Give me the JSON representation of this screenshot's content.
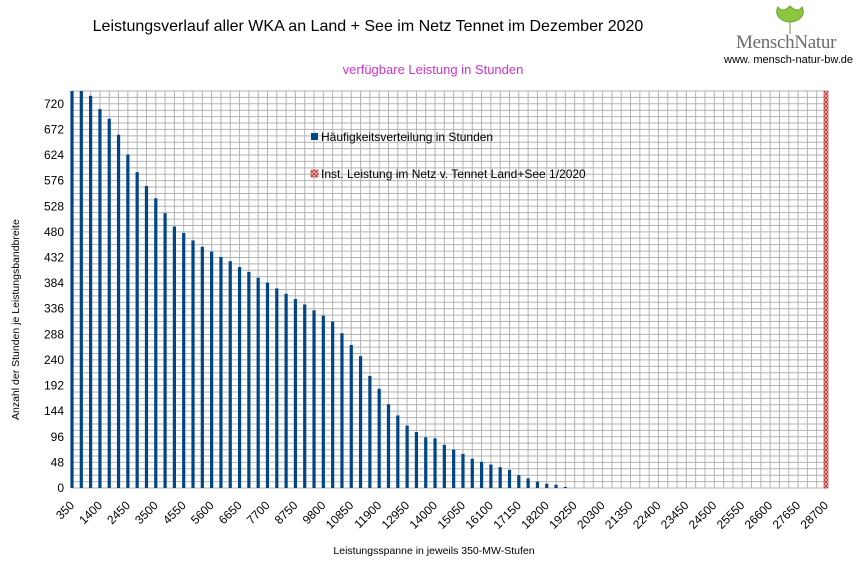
{
  "header": {
    "title": "Leistungsverlauf aller WKA an Land + See im Netz Tennet im Dezember 2020",
    "subtitle": "verfügbare Leistung in Stunden",
    "subtitle_color": "#cc33cc"
  },
  "logo": {
    "name": "MenschNatur",
    "url": "www. mensch-natur-bw.de"
  },
  "chart_data": {
    "type": "bar",
    "title": "Leistungsverlauf aller WKA an Land + See im Netz Tennet im Dezember 2020",
    "subtitle": "verfügbare Leistung in Stunden",
    "xlabel": "Leistungsspanne in jeweils 350-MW-Stufen",
    "ylabel": "Anzahl der Stunden je Leistungsbandbreite",
    "ylim": [
      0,
      744
    ],
    "yticks": [
      0,
      48,
      96,
      144,
      192,
      240,
      288,
      336,
      384,
      432,
      480,
      528,
      576,
      624,
      672,
      720
    ],
    "xticks": [
      350,
      1400,
      2450,
      3500,
      4550,
      5600,
      6650,
      7700,
      8750,
      9800,
      10850,
      11900,
      12950,
      14000,
      15050,
      16100,
      17150,
      18200,
      19250,
      20300,
      21350,
      22400,
      23450,
      24500,
      25550,
      26600,
      27650,
      28700
    ],
    "x_step": 350,
    "grid": true,
    "legend_position": "inside-top-center",
    "series": [
      {
        "name": "Häufigkeitsverteilung in Stunden",
        "color": "#004586",
        "x": [
          350,
          700,
          1050,
          1400,
          1750,
          2100,
          2450,
          2800,
          3150,
          3500,
          3850,
          4200,
          4550,
          4900,
          5250,
          5600,
          5950,
          6300,
          6650,
          7000,
          7350,
          7700,
          8050,
          8400,
          8750,
          9100,
          9450,
          9800,
          10150,
          10500,
          10850,
          11200,
          11550,
          11900,
          12250,
          12600,
          12950,
          13300,
          13650,
          14000,
          14350,
          14700,
          15050,
          15400,
          15750,
          16100,
          16450,
          16800,
          17150,
          17500,
          17850,
          18200,
          18550,
          18900
        ],
        "values": [
          744,
          744,
          735,
          710,
          692,
          662,
          625,
          592,
          566,
          543,
          515,
          490,
          478,
          464,
          452,
          443,
          433,
          425,
          414,
          405,
          394,
          385,
          374,
          364,
          354,
          344,
          333,
          323,
          312,
          290,
          268,
          247,
          210,
          186,
          157,
          136,
          117,
          105,
          95,
          93,
          81,
          72,
          64,
          55,
          49,
          44,
          39,
          34,
          24,
          18,
          12,
          8,
          6,
          2
        ]
      },
      {
        "name": "Inst. Leistung im Netz v. Tennet  Land+See 1/2020",
        "color": "#c9211e",
        "x": [
          28700
        ],
        "values": [
          744
        ]
      }
    ]
  }
}
